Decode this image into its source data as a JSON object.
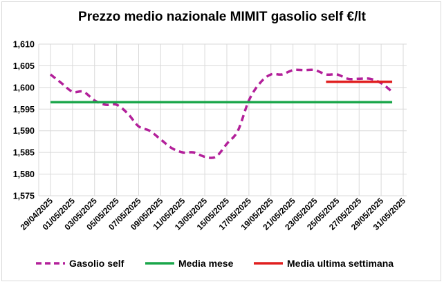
{
  "chart_data": {
    "type": "line",
    "title": "Prezzo medio nazionale MIMIT gasolio self €/lt",
    "xlabel": "",
    "ylabel": "",
    "ylim": [
      1.575,
      1.61
    ],
    "yticks": [
      "1,575",
      "1,580",
      "1,585",
      "1,590",
      "1,595",
      "1,600",
      "1,605",
      "1,610"
    ],
    "xticks": [
      "29/04/2025",
      "01/05/2025",
      "03/05/2025",
      "05/05/2025",
      "07/05/2025",
      "09/05/2025",
      "11/05/2025",
      "13/05/2025",
      "15/05/2025",
      "17/05/2025",
      "19/05/2025",
      "21/05/2025",
      "23/05/2025",
      "25/05/2025",
      "27/05/2025",
      "29/05/2025",
      "31/05/2025"
    ],
    "grid": true,
    "legend_position": "bottom",
    "series": [
      {
        "name": "Gasolio self",
        "color": "#b3209a",
        "style": "dashed",
        "x": [
          "29/04/2025",
          "30/04/2025",
          "01/05/2025",
          "02/05/2025",
          "03/05/2025",
          "04/05/2025",
          "05/05/2025",
          "06/05/2025",
          "07/05/2025",
          "08/05/2025",
          "09/05/2025",
          "10/05/2025",
          "11/05/2025",
          "12/05/2025",
          "13/05/2025",
          "14/05/2025",
          "15/05/2025",
          "16/05/2025",
          "17/05/2025",
          "18/05/2025",
          "19/05/2025",
          "20/05/2025",
          "21/05/2025",
          "22/05/2025",
          "23/05/2025",
          "24/05/2025",
          "25/05/2025",
          "26/05/2025",
          "27/05/2025",
          "28/05/2025",
          "29/05/2025",
          "30/05/2025"
        ],
        "values": [
          1.603,
          1.601,
          1.599,
          1.599,
          1.597,
          1.596,
          1.596,
          1.594,
          1.591,
          1.59,
          1.588,
          1.586,
          1.585,
          1.585,
          1.584,
          1.584,
          1.587,
          1.59,
          1.597,
          1.601,
          1.603,
          1.603,
          1.604,
          1.604,
          1.604,
          1.603,
          1.603,
          1.602,
          1.602,
          1.602,
          1.601,
          1.599
        ]
      },
      {
        "name": "Media mese",
        "color": "#1aa64a",
        "style": "solid",
        "x": [
          "29/04/2025",
          "30/05/2025"
        ],
        "values": [
          1.5966,
          1.5966
        ]
      },
      {
        "name": "Media ultima settimana",
        "color": "#e01f1f",
        "style": "solid",
        "x": [
          "24/05/2025",
          "30/05/2025"
        ],
        "values": [
          1.6013,
          1.6013
        ]
      }
    ]
  }
}
